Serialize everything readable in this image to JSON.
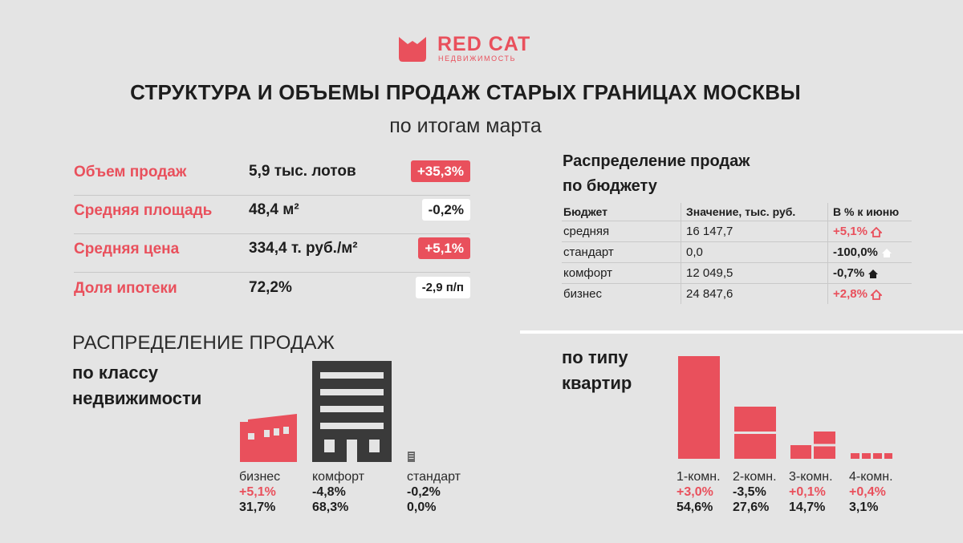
{
  "logo": {
    "name": "RED CAT",
    "sub": "НЕДВИЖИМОСТЬ"
  },
  "title": "СТРУКТУРА И ОБЪЕМЫ ПРОДАЖ СТАРЫХ ГРАНИЦАХ МОСКВЫ",
  "subtitle": "по итогам марта",
  "kpis": [
    {
      "label": "Объем продаж",
      "value": "5,9 тыс. лотов",
      "change": "+35,3%",
      "tone": "pos"
    },
    {
      "label": "Средняя площадь",
      "value": "48,4 м²",
      "change": "-0,2%",
      "tone": "neg"
    },
    {
      "label": "Средняя цена",
      "value": "334,4 т. руб./м²",
      "change": "+5,1%",
      "tone": "pos"
    },
    {
      "label": "Доля ипотеки",
      "value": "72,2%",
      "change": "-2,9 п/п",
      "tone": "neg"
    }
  ],
  "budget": {
    "title_line1": "Распределение продаж",
    "title_line2": "по бюджету",
    "headers": [
      "Бюджет",
      "Значение, тыс. руб.",
      "В % к июню"
    ],
    "rows": [
      {
        "name": "средняя",
        "value": "16 147,7",
        "change": "+5,1%",
        "tone": "pos"
      },
      {
        "name": "стандарт",
        "value": "0,0",
        "change": "-100,0%",
        "tone": "neg"
      },
      {
        "name": "комфорт",
        "value": "12 049,5",
        "change": "-0,7%",
        "tone": "neg"
      },
      {
        "name": "бизнес",
        "value": "24 847,6",
        "change": "+2,8%",
        "tone": "pos"
      }
    ]
  },
  "class_section": {
    "heading": "РАСПРЕДЕЛЕНИЕ ПРОДАЖ",
    "sub_line1": "по классу",
    "sub_line2": "недвижимости"
  },
  "apt_section": {
    "line1": "по типу",
    "line2": "квартир"
  },
  "colors": {
    "accent": "#e9505c",
    "dark": "#3a3a3a",
    "background": "#e4e4e4"
  },
  "chart_data": [
    {
      "type": "bar",
      "title": "по классу недвижимости",
      "categories": [
        "бизнес",
        "комфорт",
        "стандарт"
      ],
      "values": [
        31.7,
        68.3,
        0.0
      ],
      "value_labels": [
        "31,7%",
        "68,3%",
        "0,0%"
      ],
      "change_labels": [
        "+5,1%",
        "-4,8%",
        "-0,2%"
      ],
      "changes": [
        5.1,
        -4.8,
        -0.2
      ]
    },
    {
      "type": "bar",
      "title": "по типу квартир",
      "categories": [
        "1-комн.",
        "2-комн.",
        "3-комн.",
        "4-комн."
      ],
      "values": [
        54.6,
        27.6,
        14.7,
        3.1
      ],
      "value_labels": [
        "54,6%",
        "27,6%",
        "14,7%",
        "3,1%"
      ],
      "change_labels": [
        "+3,0%",
        "-3,5%",
        "+0,1%",
        "+0,4%"
      ],
      "changes": [
        3.0,
        -3.5,
        0.1,
        0.4
      ],
      "ylim": [
        0,
        60
      ]
    }
  ]
}
